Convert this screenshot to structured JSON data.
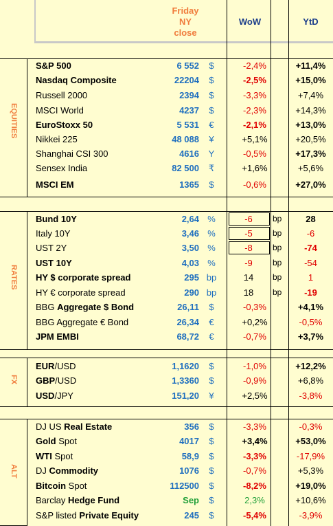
{
  "header": {
    "close_label_1": "Friday",
    "close_label_2": "NY",
    "close_label_3": "close",
    "wow_label": "WoW",
    "ytd_label": "YtD"
  },
  "sections": {
    "equities": "EQUITIES",
    "rates": "RATES",
    "fx": "FX",
    "alt": "ALT"
  },
  "rows": [
    {
      "parts": [
        {
          "t": "S&P 500",
          "b": true
        }
      ],
      "value": "6 552",
      "unit": "$",
      "wow": "-2,4%",
      "wow_color": "red",
      "wow_bold": false,
      "ytd": "+11,4%",
      "ytd_color": "blk",
      "ytd_bold": true
    },
    {
      "parts": [
        {
          "t": "Nasdaq Composite",
          "b": true
        }
      ],
      "value": "22204",
      "unit": "$",
      "wow": "-2,5%",
      "wow_color": "red",
      "wow_bold": true,
      "ytd": "+15,0%",
      "ytd_color": "blk",
      "ytd_bold": true
    },
    {
      "parts": [
        {
          "t": "Russell 2000",
          "b": false
        }
      ],
      "value": "2394",
      "unit": "$",
      "wow": "-3,3%",
      "wow_color": "red",
      "wow_bold": false,
      "ytd": "+7,4%",
      "ytd_color": "blk",
      "ytd_bold": false
    },
    {
      "parts": [
        {
          "t": "MSCI World",
          "b": false
        }
      ],
      "value": "4237",
      "unit": "$",
      "wow": "-2,3%",
      "wow_color": "red",
      "wow_bold": false,
      "ytd": "+14,3%",
      "ytd_color": "blk",
      "ytd_bold": false
    },
    {
      "parts": [
        {
          "t": "EuroStoxx 50",
          "b": true
        }
      ],
      "value": "5 531",
      "unit": "€",
      "wow": "-2,1%",
      "wow_color": "red",
      "wow_bold": true,
      "ytd": "+13,0%",
      "ytd_color": "blk",
      "ytd_bold": true
    },
    {
      "parts": [
        {
          "t": "Nikkei 225",
          "b": false
        }
      ],
      "value": "48 088",
      "unit": "¥",
      "wow": "+5,1%",
      "wow_color": "blk",
      "wow_bold": false,
      "ytd": "+20,5%",
      "ytd_color": "blk",
      "ytd_bold": false
    },
    {
      "parts": [
        {
          "t": "Shanghai CSI 300",
          "b": false
        }
      ],
      "value": "4616",
      "unit": "Y",
      "wow": "-0,5%",
      "wow_color": "red",
      "wow_bold": false,
      "ytd": "+17,3%",
      "ytd_color": "blk",
      "ytd_bold": true
    },
    {
      "parts": [
        {
          "t": "Sensex India",
          "b": false
        }
      ],
      "value": "82 500",
      "unit": "₹",
      "wow": "+1,6%",
      "wow_color": "blk",
      "wow_bold": false,
      "ytd": "+5,6%",
      "ytd_color": "blk",
      "ytd_bold": false
    },
    {
      "parts": [
        {
          "t": "MSCI EM",
          "b": true
        }
      ],
      "value": "1365",
      "unit": "$",
      "wow": "-0,6%",
      "wow_color": "red",
      "wow_bold": false,
      "ytd": "+27,0%",
      "ytd_color": "blk",
      "ytd_bold": true
    },
    {
      "parts": [
        {
          "t": "Bund 10Y",
          "b": true
        }
      ],
      "value": "2,64",
      "unit": "%",
      "wow": "-6",
      "wow_color": "red",
      "wow_bold": false,
      "boxed": true,
      "bp": "bp",
      "ytd": "28",
      "ytd_color": "blk",
      "ytd_bold": true
    },
    {
      "parts": [
        {
          "t": "Italy 10Y",
          "b": false
        }
      ],
      "value": "3,46",
      "unit": "%",
      "wow": "-5",
      "wow_color": "red",
      "wow_bold": false,
      "boxed": true,
      "bp": "bp",
      "ytd": "-6",
      "ytd_color": "red",
      "ytd_bold": false
    },
    {
      "parts": [
        {
          "t": "UST 2Y",
          "b": false
        }
      ],
      "value": "3,50",
      "unit": "%",
      "wow": "-8",
      "wow_color": "red",
      "wow_bold": false,
      "boxed": true,
      "bp": "bp",
      "ytd": "-74",
      "ytd_color": "red",
      "ytd_bold": true
    },
    {
      "parts": [
        {
          "t": "UST 10Y",
          "b": true
        }
      ],
      "value": "4,03",
      "unit": "%",
      "wow": "-9",
      "wow_color": "red",
      "wow_bold": false,
      "bp": "bp",
      "ytd": "-54",
      "ytd_color": "red",
      "ytd_bold": false
    },
    {
      "parts": [
        {
          "t": "HY $ corporate spread",
          "b": true
        }
      ],
      "value": "295",
      "unit": "bp",
      "wow": "14",
      "wow_color": "blk",
      "wow_bold": false,
      "bp": "bp",
      "ytd": "1",
      "ytd_color": "red",
      "ytd_bold": false
    },
    {
      "parts": [
        {
          "t": "HY € corporate spread",
          "b": false
        }
      ],
      "value": "290",
      "unit": "bp",
      "wow": "18",
      "wow_color": "blk",
      "wow_bold": false,
      "bp": "bp",
      "ytd": "-19",
      "ytd_color": "red",
      "ytd_bold": true
    },
    {
      "parts": [
        {
          "t": "BBG ",
          "b": false
        },
        {
          "t": "Aggregate $ Bond",
          "b": true
        }
      ],
      "value": "26,11",
      "unit": "$",
      "wow": "-0,3%",
      "wow_color": "red",
      "wow_bold": false,
      "ytd": "+4,1%",
      "ytd_color": "blk",
      "ytd_bold": true
    },
    {
      "parts": [
        {
          "t": "BBG Aggregate € Bond",
          "b": false
        }
      ],
      "value": "26,34",
      "unit": "€",
      "wow": "+0,2%",
      "wow_color": "blk",
      "wow_bold": false,
      "ytd": "-0,5%",
      "ytd_color": "red",
      "ytd_bold": false
    },
    {
      "parts": [
        {
          "t": "JPM EMBI",
          "b": true
        }
      ],
      "value": "68,72",
      "unit": "€",
      "wow": "-0,7%",
      "wow_color": "red",
      "wow_bold": false,
      "ytd": "+3,7%",
      "ytd_color": "blk",
      "ytd_bold": true
    },
    {
      "parts": [
        {
          "t": "EUR",
          "b": true
        },
        {
          "t": "/USD",
          "b": false
        }
      ],
      "value": "1,1620",
      "unit": "$",
      "wow": "-1,0%",
      "wow_color": "red",
      "wow_bold": false,
      "ytd": "+12,2%",
      "ytd_color": "blk",
      "ytd_bold": true
    },
    {
      "parts": [
        {
          "t": "GBP",
          "b": true
        },
        {
          "t": "/USD",
          "b": false
        }
      ],
      "value": "1,3360",
      "unit": "$",
      "wow": "-0,9%",
      "wow_color": "red",
      "wow_bold": false,
      "ytd": "+6,8%",
      "ytd_color": "blk",
      "ytd_bold": false
    },
    {
      "parts": [
        {
          "t": "USD",
          "b": true
        },
        {
          "t": "/JPY",
          "b": false
        }
      ],
      "value": "151,20",
      "unit": "¥",
      "wow": "+2,5%",
      "wow_color": "blk",
      "wow_bold": false,
      "ytd": "-3,8%",
      "ytd_color": "red",
      "ytd_bold": false
    },
    {
      "parts": [
        {
          "t": "DJ US ",
          "b": false
        },
        {
          "t": "Real Estate",
          "b": true
        }
      ],
      "value": "356",
      "unit": "$",
      "wow": "-3,3%",
      "wow_color": "red",
      "wow_bold": false,
      "ytd": "-0,3%",
      "ytd_color": "red",
      "ytd_bold": false
    },
    {
      "parts": [
        {
          "t": "Gold",
          "b": true
        },
        {
          "t": " Spot",
          "b": false
        }
      ],
      "value": "4017",
      "unit": "$",
      "wow": "+3,4%",
      "wow_color": "blk",
      "wow_bold": true,
      "ytd": "+53,0%",
      "ytd_color": "blk",
      "ytd_bold": true
    },
    {
      "parts": [
        {
          "t": "WTI",
          "b": true
        },
        {
          "t": " Spot",
          "b": false
        }
      ],
      "value": "58,9",
      "unit": "$",
      "wow": "-3,3%",
      "wow_color": "red",
      "wow_bold": true,
      "ytd": "-17,9%",
      "ytd_color": "red",
      "ytd_bold": false
    },
    {
      "parts": [
        {
          "t": "DJ ",
          "b": false
        },
        {
          "t": "Commodity",
          "b": true
        }
      ],
      "value": "1076",
      "unit": "$",
      "wow": "-0,7%",
      "wow_color": "red",
      "wow_bold": false,
      "ytd": "+5,3%",
      "ytd_color": "blk",
      "ytd_bold": false
    },
    {
      "parts": [
        {
          "t": "Bitcoin",
          "b": true
        },
        {
          "t": " Spot",
          "b": false
        }
      ],
      "value": "112500",
      "unit": "$",
      "wow": "-8,2%",
      "wow_color": "red",
      "wow_bold": true,
      "ytd": "+19,0%",
      "ytd_color": "blk",
      "ytd_bold": true
    },
    {
      "parts": [
        {
          "t": "Barclay ",
          "b": false
        },
        {
          "t": "Hedge Fund",
          "b": true
        }
      ],
      "value": "Sep",
      "value_color": "grn",
      "unit": "$",
      "wow": "2,3%",
      "wow_color": "grn",
      "wow_bold": false,
      "ytd": "+10,6%",
      "ytd_color": "blk",
      "ytd_bold": false
    },
    {
      "parts": [
        {
          "t": "S&P listed ",
          "b": false
        },
        {
          "t": "Private Equity",
          "b": true
        }
      ],
      "value": "245",
      "unit": "$",
      "wow": "-5,4%",
      "wow_color": "red",
      "wow_bold": true,
      "ytd": "-3,9%",
      "ytd_color": "red",
      "ytd_bold": false
    }
  ]
}
